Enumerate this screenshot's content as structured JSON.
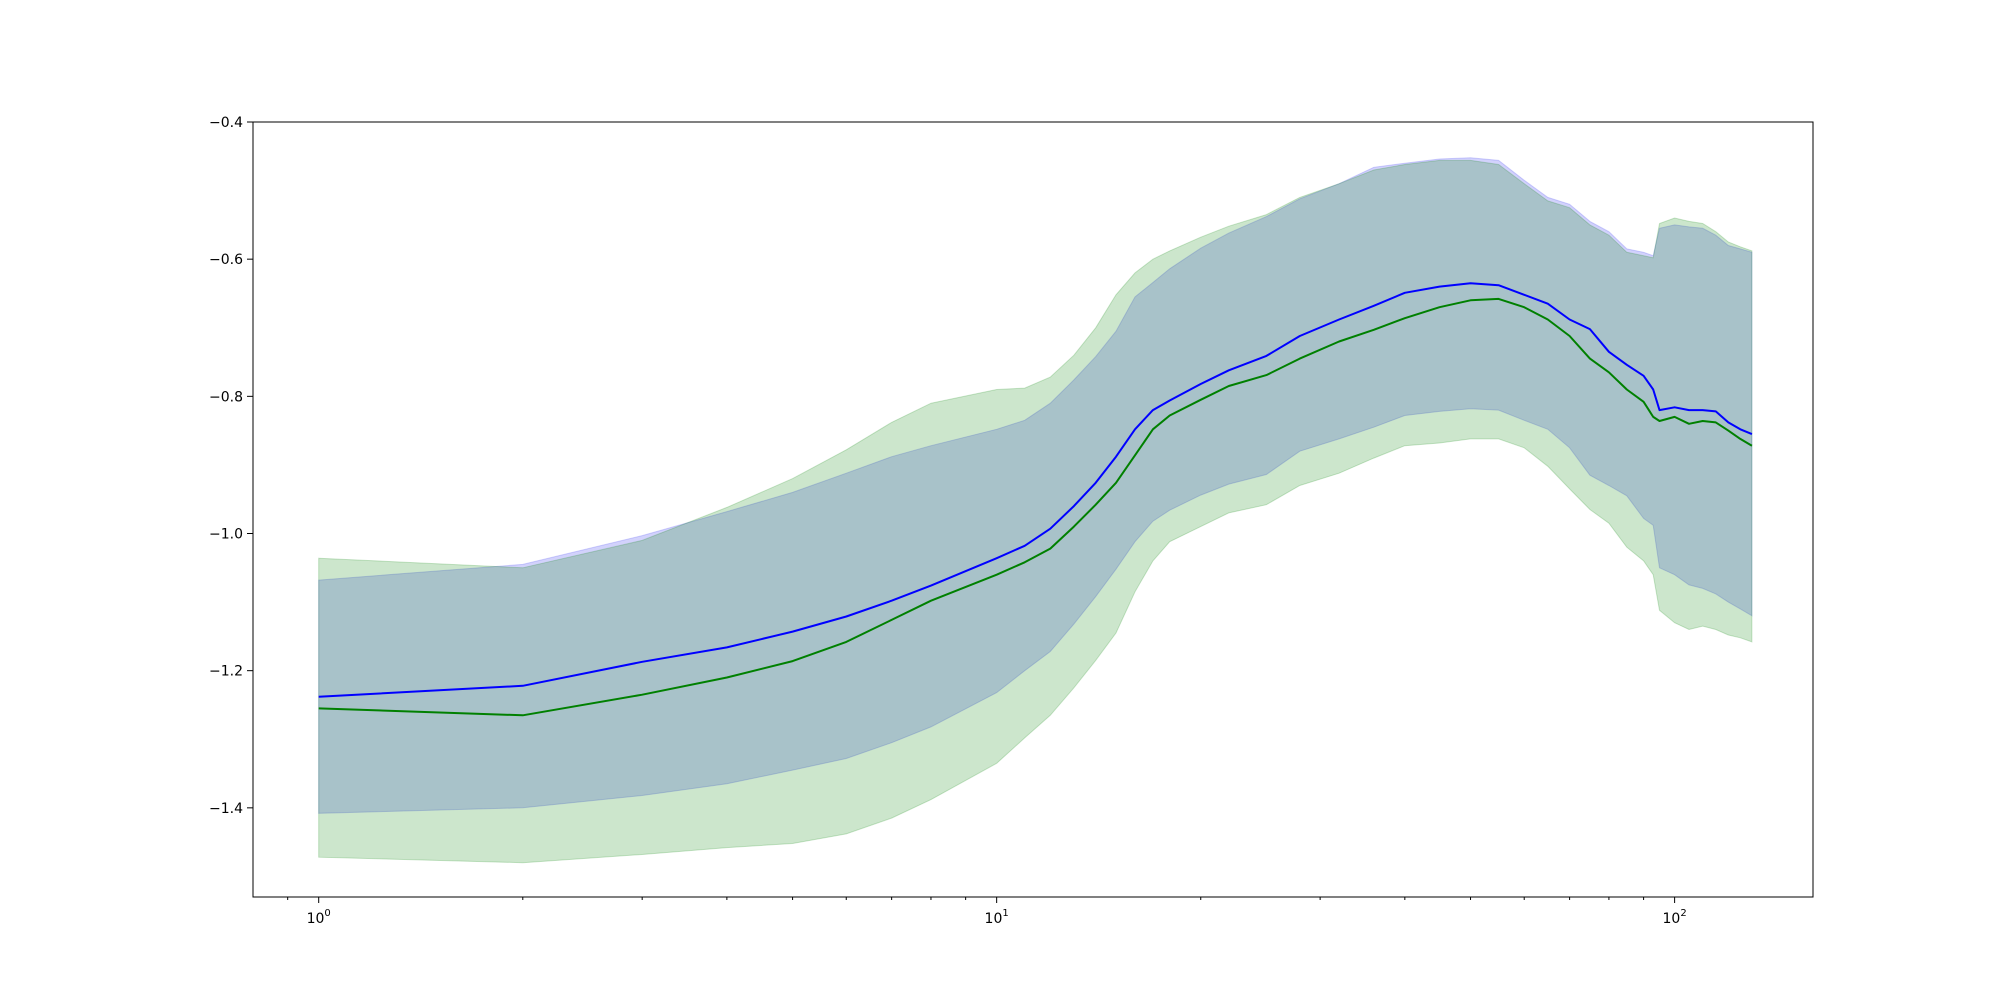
{
  "chart_data": {
    "type": "line",
    "x_scale": "log",
    "xlim": [
      0.8,
      160
    ],
    "ylim": [
      -1.53,
      -0.4
    ],
    "grid": false,
    "legend": "none",
    "x_ticks": [
      {
        "value": 1,
        "base": "10",
        "exp": "0"
      },
      {
        "value": 10,
        "base": "10",
        "exp": "1"
      },
      {
        "value": 100,
        "base": "10",
        "exp": "2"
      }
    ],
    "x_minor_ticks": [
      0.9,
      2,
      3,
      4,
      5,
      6,
      7,
      8,
      9,
      20,
      30,
      40,
      50,
      60,
      70,
      80,
      90
    ],
    "y_ticks": [
      {
        "value": -0.4,
        "label": "−0.4"
      },
      {
        "value": -0.6,
        "label": "−0.6"
      },
      {
        "value": -0.8,
        "label": "−0.8"
      },
      {
        "value": -1.0,
        "label": "−1.0"
      },
      {
        "value": -1.2,
        "label": "−1.2"
      },
      {
        "value": -1.4,
        "label": "−1.4"
      }
    ],
    "series": [
      {
        "color": "#0000ff",
        "band_color": "#6a6af5",
        "band_opacity": 0.3,
        "x": [
          1,
          2,
          3,
          4,
          5,
          6,
          7,
          8,
          10,
          11,
          12,
          13,
          14,
          15,
          16,
          17,
          18,
          20,
          22,
          25,
          28,
          32,
          36,
          40,
          45,
          50,
          55,
          60,
          65,
          70,
          75,
          80,
          85,
          90,
          93,
          95,
          100,
          105,
          110,
          115,
          120,
          125,
          130
        ],
        "y": [
          -1.238,
          -1.222,
          -1.187,
          -1.166,
          -1.143,
          -1.121,
          -1.098,
          -1.076,
          -1.036,
          -1.018,
          -0.993,
          -0.96,
          -0.926,
          -0.888,
          -0.848,
          -0.82,
          -0.806,
          -0.782,
          -0.762,
          -0.741,
          -0.712,
          -0.688,
          -0.668,
          -0.649,
          -0.64,
          -0.635,
          -0.638,
          -0.652,
          -0.665,
          -0.688,
          -0.702,
          -0.735,
          -0.754,
          -0.77,
          -0.79,
          -0.82,
          -0.816,
          -0.82,
          -0.82,
          -0.822,
          -0.838,
          -0.848,
          -0.855
        ],
        "upper": [
          -1.068,
          -1.045,
          -1.003,
          -0.968,
          -0.94,
          -0.912,
          -0.888,
          -0.872,
          -0.848,
          -0.835,
          -0.81,
          -0.776,
          -0.742,
          -0.705,
          -0.655,
          -0.634,
          -0.614,
          -0.584,
          -0.562,
          -0.538,
          -0.512,
          -0.49,
          -0.466,
          -0.46,
          -0.454,
          -0.452,
          -0.456,
          -0.485,
          -0.51,
          -0.52,
          -0.545,
          -0.56,
          -0.585,
          -0.59,
          -0.595,
          -0.555,
          -0.55,
          -0.553,
          -0.555,
          -0.565,
          -0.58,
          -0.585,
          -0.59
        ],
        "lower": [
          -1.408,
          -1.4,
          -1.382,
          -1.365,
          -1.345,
          -1.328,
          -1.305,
          -1.282,
          -1.232,
          -1.2,
          -1.172,
          -1.132,
          -1.092,
          -1.052,
          -1.012,
          -0.982,
          -0.966,
          -0.944,
          -0.928,
          -0.914,
          -0.88,
          -0.862,
          -0.845,
          -0.828,
          -0.822,
          -0.818,
          -0.82,
          -0.835,
          -0.848,
          -0.875,
          -0.915,
          -0.93,
          -0.945,
          -0.978,
          -0.988,
          -1.05,
          -1.06,
          -1.075,
          -1.08,
          -1.088,
          -1.1,
          -1.11,
          -1.12
        ]
      },
      {
        "color": "#008000",
        "band_color": "#008000",
        "band_opacity": 0.2,
        "x": [
          1,
          2,
          3,
          4,
          5,
          6,
          7,
          8,
          10,
          11,
          12,
          13,
          14,
          15,
          16,
          17,
          18,
          20,
          22,
          25,
          28,
          32,
          36,
          40,
          45,
          50,
          55,
          60,
          65,
          70,
          75,
          80,
          85,
          90,
          93,
          95,
          100,
          105,
          110,
          115,
          120,
          125,
          130
        ],
        "y": [
          -1.255,
          -1.265,
          -1.235,
          -1.21,
          -1.186,
          -1.158,
          -1.126,
          -1.098,
          -1.06,
          -1.042,
          -1.022,
          -0.99,
          -0.958,
          -0.926,
          -0.886,
          -0.848,
          -0.828,
          -0.805,
          -0.785,
          -0.769,
          -0.745,
          -0.72,
          -0.703,
          -0.686,
          -0.67,
          -0.66,
          -0.658,
          -0.67,
          -0.688,
          -0.712,
          -0.745,
          -0.765,
          -0.79,
          -0.808,
          -0.83,
          -0.836,
          -0.83,
          -0.84,
          -0.836,
          -0.838,
          -0.85,
          -0.862,
          -0.872
        ],
        "upper": [
          -1.036,
          -1.05,
          -1.01,
          -0.962,
          -0.92,
          -0.878,
          -0.838,
          -0.81,
          -0.79,
          -0.788,
          -0.772,
          -0.74,
          -0.7,
          -0.652,
          -0.62,
          -0.6,
          -0.588,
          -0.568,
          -0.552,
          -0.535,
          -0.51,
          -0.49,
          -0.47,
          -0.462,
          -0.456,
          -0.456,
          -0.462,
          -0.49,
          -0.515,
          -0.525,
          -0.55,
          -0.565,
          -0.59,
          -0.595,
          -0.598,
          -0.548,
          -0.54,
          -0.545,
          -0.548,
          -0.56,
          -0.575,
          -0.582,
          -0.588
        ],
        "lower": [
          -1.472,
          -1.48,
          -1.468,
          -1.458,
          -1.452,
          -1.438,
          -1.415,
          -1.388,
          -1.335,
          -1.298,
          -1.265,
          -1.225,
          -1.185,
          -1.145,
          -1.085,
          -1.04,
          -1.012,
          -0.99,
          -0.97,
          -0.958,
          -0.93,
          -0.912,
          -0.89,
          -0.872,
          -0.868,
          -0.862,
          -0.862,
          -0.875,
          -0.902,
          -0.935,
          -0.965,
          -0.985,
          -1.02,
          -1.04,
          -1.06,
          -1.112,
          -1.13,
          -1.14,
          -1.135,
          -1.14,
          -1.148,
          -1.152,
          -1.158
        ]
      }
    ]
  }
}
